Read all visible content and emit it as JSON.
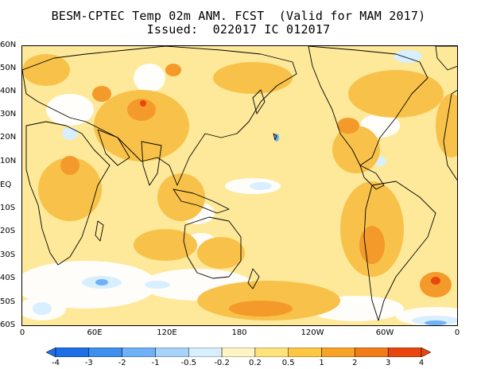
{
  "title": {
    "line1": "BESM-CPTEC Temp 02m ANM. FCST  (Valid for MAM 2017)",
    "line2": "Issued:  022017 IC 012017"
  },
  "lat_labels": [
    "60N",
    "50N",
    "40N",
    "30N",
    "20N",
    "10N",
    "EQ",
    "10S",
    "20S",
    "30S",
    "40S",
    "50S",
    "60S"
  ],
  "lon_labels": [
    "0",
    "60E",
    "120E",
    "180",
    "120W",
    "60W",
    "0"
  ],
  "colorbar": {
    "labels": [
      "-4",
      "-3",
      "-2",
      "-1",
      "-0.5",
      "-0.2",
      "0.2",
      "0.5",
      "1",
      "2",
      "3",
      "4"
    ],
    "colors": [
      "#1e6fe6",
      "#3f8ff0",
      "#6fb0f7",
      "#a7d3fb",
      "#d8efff",
      "#ffffff",
      "#fff5c4",
      "#ffe27a",
      "#fcc844",
      "#f7a325",
      "#f27c18",
      "#e8460c"
    ]
  },
  "colors": {
    "base_anomaly": "#fde999",
    "warm_anomaly": "#f8c24a",
    "strong_warm": "#f39a2a",
    "cold_anomaly": "#d8efff",
    "neutral": "#ffffff"
  }
}
